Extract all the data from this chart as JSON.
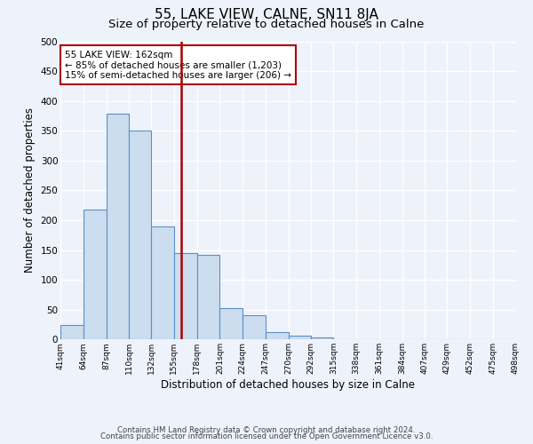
{
  "title": "55, LAKE VIEW, CALNE, SN11 8JA",
  "subtitle": "Size of property relative to detached houses in Calne",
  "xlabel": "Distribution of detached houses by size in Calne",
  "ylabel": "Number of detached properties",
  "footer_line1": "Contains HM Land Registry data © Crown copyright and database right 2024.",
  "footer_line2": "Contains public sector information licensed under the Open Government Licence v3.0.",
  "bin_labels": [
    "41sqm",
    "64sqm",
    "87sqm",
    "110sqm",
    "132sqm",
    "155sqm",
    "178sqm",
    "201sqm",
    "224sqm",
    "247sqm",
    "270sqm",
    "292sqm",
    "315sqm",
    "338sqm",
    "361sqm",
    "384sqm",
    "407sqm",
    "429sqm",
    "452sqm",
    "475sqm",
    "498sqm"
  ],
  "bin_edges": [
    41,
    64,
    87,
    110,
    132,
    155,
    178,
    201,
    224,
    247,
    270,
    292,
    315,
    338,
    361,
    384,
    407,
    429,
    452,
    475,
    498
  ],
  "bar_heights": [
    25,
    218,
    378,
    350,
    190,
    145,
    142,
    53,
    40,
    13,
    6,
    3,
    1,
    0,
    1,
    0,
    0,
    0,
    0,
    0
  ],
  "bar_color": "#ccddf0",
  "bar_edge_color": "#5b8fc9",
  "vline_x": 162,
  "vline_color": "#aa0000",
  "annotation_title": "55 LAKE VIEW: 162sqm",
  "annotation_line1": "← 85% of detached houses are smaller (1,203)",
  "annotation_line2": "15% of semi-detached houses are larger (206) →",
  "annotation_box_edge": "#aa0000",
  "ylim": [
    0,
    500
  ],
  "yticks": [
    0,
    50,
    100,
    150,
    200,
    250,
    300,
    350,
    400,
    450,
    500
  ],
  "bg_color": "#eef2fb",
  "plot_bg_color": "#eef2fb",
  "grid_color": "#ffffff",
  "title_fontsize": 11,
  "subtitle_fontsize": 9.5
}
